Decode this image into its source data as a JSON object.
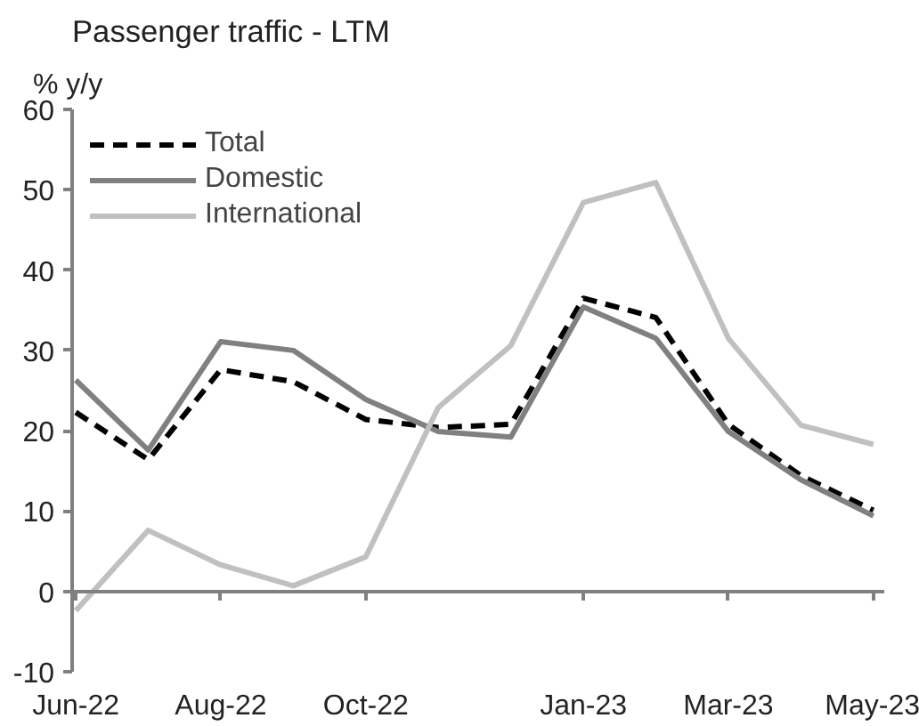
{
  "chart_data": {
    "type": "line",
    "title": "Passenger traffic - LTM",
    "ylabel": "% y/y",
    "categories": [
      "Jun-22",
      null,
      "Aug-22",
      null,
      "Oct-22",
      null,
      null,
      "Jan-23",
      null,
      "Mar-23",
      null,
      "May-23"
    ],
    "series": [
      {
        "name": "Total",
        "color": "#000000",
        "line_style": "dashed",
        "values": [
          22.3,
          16.4,
          27.6,
          26.1,
          21.4,
          20.4,
          20.8,
          36.5,
          34.1,
          20.8,
          14.4,
          10.1
        ]
      },
      {
        "name": "Domestic",
        "color": "#808080",
        "line_style": "solid",
        "values": [
          26.3,
          17.6,
          31.1,
          30.0,
          23.9,
          19.9,
          19.2,
          35.4,
          31.5,
          19.9,
          13.9,
          9.4
        ]
      },
      {
        "name": "International",
        "color": "#c0c0c0",
        "line_style": "solid",
        "values": [
          -2.4,
          7.6,
          3.3,
          0.7,
          4.3,
          22.9,
          30.6,
          48.4,
          50.9,
          31.5,
          20.7,
          18.3
        ]
      }
    ],
    "ylim": [
      -10,
      60
    ],
    "yticks": [
      -10,
      0,
      10,
      20,
      30,
      40,
      50,
      60
    ],
    "legend": "top left"
  }
}
